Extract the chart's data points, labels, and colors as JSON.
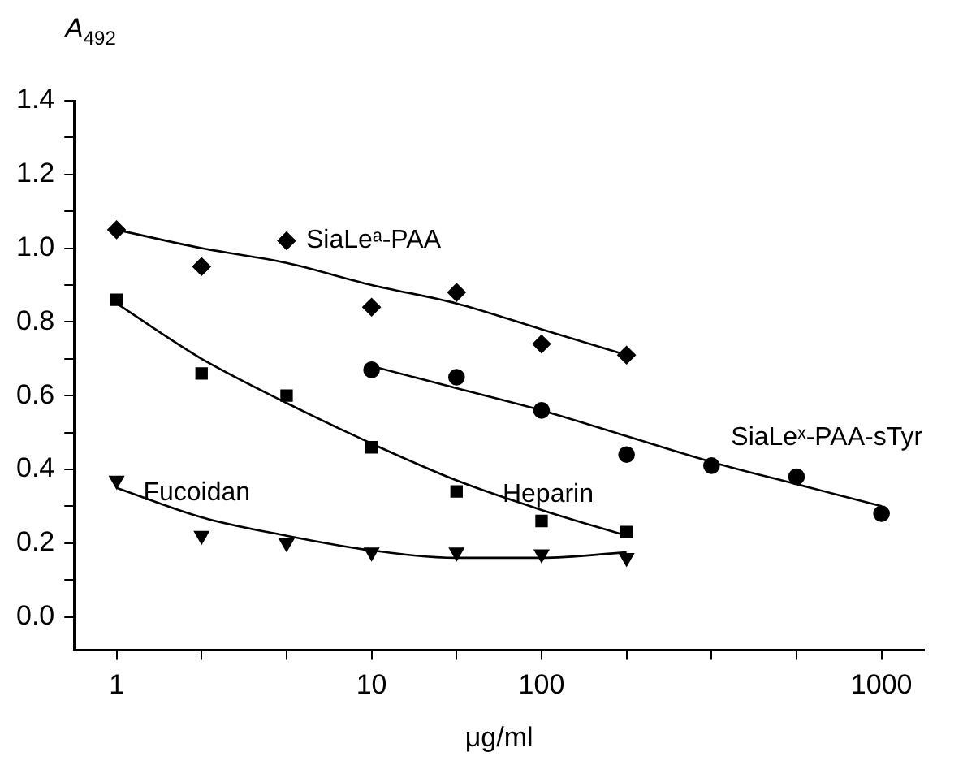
{
  "chart_data": {
    "type": "scatter",
    "ylabel": "A$_{492}$",
    "xlabel": "μg/ml",
    "legend": false,
    "categories": [
      "1",
      null,
      null,
      "10",
      null,
      "100",
      null,
      null,
      null,
      "1000"
    ],
    "ylim": [
      -0.09,
      1.4
    ],
    "yticks": [
      {
        "value": 0,
        "label": "0.0"
      },
      {
        "value": 0.1,
        "label": null
      },
      {
        "value": 0.2,
        "label": "0.2"
      },
      {
        "value": 0.3,
        "label": null
      },
      {
        "value": 0.4,
        "label": "0.4"
      },
      {
        "value": 0.5,
        "label": null
      },
      {
        "value": 0.6,
        "label": "0.6"
      },
      {
        "value": 0.7,
        "label": null
      },
      {
        "value": 0.8,
        "label": "0.8"
      },
      {
        "value": 0.9,
        "label": null
      },
      {
        "value": 1,
        "label": "1.0"
      },
      {
        "value": 1.1,
        "label": null
      },
      {
        "value": 1.2,
        "label": "1.2"
      },
      {
        "value": 1.3,
        "label": null
      },
      {
        "value": 1.4,
        "label": "1.4"
      }
    ],
    "series": [
      {
        "name": "SiaLeᵃ-PAA",
        "marker": "diamond",
        "color": "#000000",
        "values": [
          1.05,
          0.95,
          1.02,
          0.84,
          0.88,
          0.74,
          0.71,
          null,
          null,
          null
        ]
      },
      {
        "name": "SiaLeˣ-PAA-sTyr",
        "marker": "circle",
        "color": "#000000",
        "values": [
          null,
          null,
          null,
          0.67,
          0.65,
          0.56,
          0.44,
          0.41,
          0.38,
          0.28
        ]
      },
      {
        "name": "Heparin",
        "marker": "square",
        "color": "#000000",
        "values": [
          0.86,
          0.66,
          0.6,
          0.46,
          0.34,
          0.26,
          0.23,
          null,
          null,
          null
        ]
      },
      {
        "name": "Fucoidan",
        "marker": "triangle",
        "color": "#000000",
        "values": [
          0.37,
          0.22,
          0.2,
          0.175,
          0.175,
          0.17,
          0.16,
          null,
          null,
          null
        ]
      },
      {
        "type": "line",
        "marker": "none",
        "line_style": "solid",
        "color": "#000000",
        "values": [
          1.05,
          1.0,
          0.96,
          0.9,
          0.85,
          0.78,
          0.71,
          null,
          null,
          null
        ]
      },
      {
        "type": "line",
        "marker": "none",
        "line_style": "solid",
        "color": "#000000",
        "values": [
          null,
          null,
          null,
          0.68,
          0.62,
          0.56,
          0.49,
          0.42,
          0.36,
          0.3
        ]
      },
      {
        "type": "line",
        "marker": "none",
        "line_style": "solid",
        "color": "#000000",
        "values": [
          0.85,
          0.7,
          0.58,
          0.47,
          0.37,
          0.29,
          0.22,
          null,
          null,
          null
        ]
      },
      {
        "type": "line",
        "marker": "none",
        "line_style": "solid",
        "color": "#000000",
        "values": [
          0.35,
          0.27,
          0.22,
          0.18,
          0.16,
          0.16,
          0.175,
          null,
          null,
          null
        ]
      }
    ]
  }
}
